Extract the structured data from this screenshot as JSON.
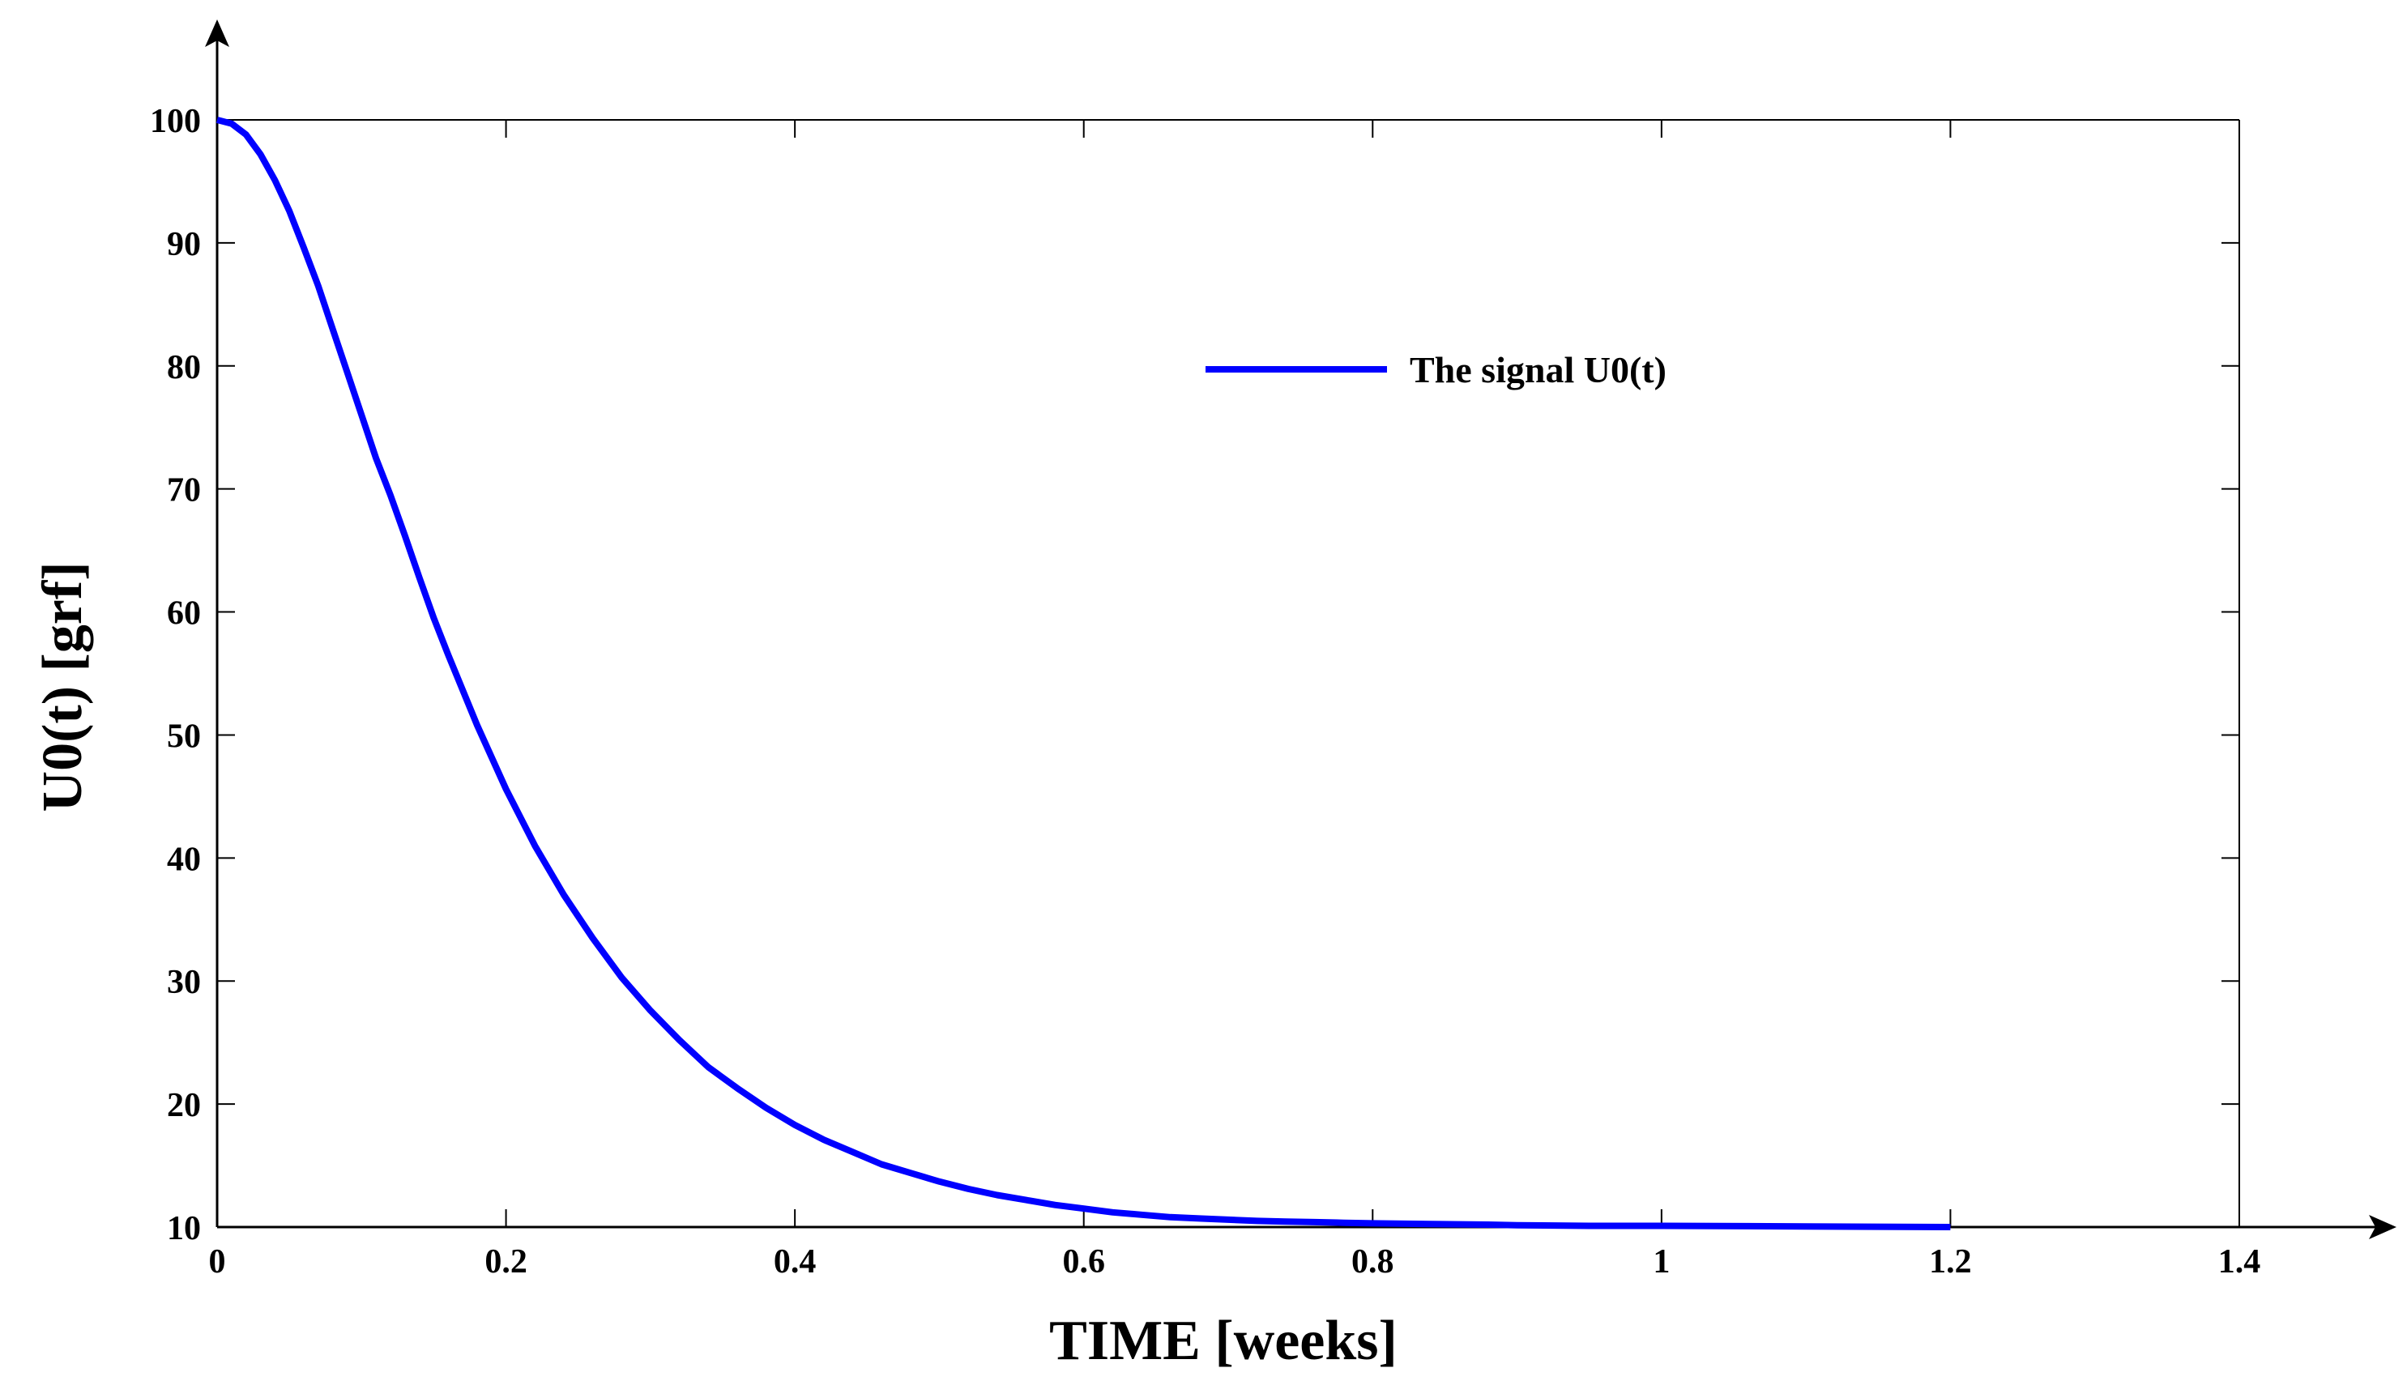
{
  "colors": {
    "series": "#0000ff",
    "axis": "#000000",
    "background": "#ffffff"
  },
  "chart_data": {
    "type": "line",
    "title": "",
    "xlabel": "TIME [weeks]",
    "ylabel": "U0(t) [grf]",
    "xlim": [
      0,
      1.4
    ],
    "ylim": [
      10,
      100
    ],
    "grid": false,
    "legend_position": "top-center",
    "x_ticks": [
      0,
      0.2,
      0.4,
      0.6,
      0.8,
      1,
      1.2,
      1.4
    ],
    "x_tick_labels": [
      "0",
      "0.2",
      "0.4",
      "0.6",
      "0.8",
      "1",
      "1.2",
      "1.4"
    ],
    "y_ticks": [
      10,
      20,
      30,
      40,
      50,
      60,
      70,
      80,
      90,
      100
    ],
    "y_tick_labels": [
      "10",
      "20",
      "30",
      "40",
      "50",
      "60",
      "70",
      "80",
      "90",
      "100"
    ],
    "series": [
      {
        "name": "The signal U0(t)",
        "x": [
          0,
          0.01,
          0.02,
          0.03,
          0.04,
          0.05,
          0.06,
          0.07,
          0.08,
          0.09,
          0.1,
          0.11,
          0.12,
          0.13,
          0.14,
          0.15,
          0.16,
          0.18,
          0.2,
          0.22,
          0.24,
          0.26,
          0.28,
          0.3,
          0.32,
          0.34,
          0.36,
          0.38,
          0.4,
          0.42,
          0.44,
          0.46,
          0.48,
          0.5,
          0.52,
          0.54,
          0.56,
          0.58,
          0.6,
          0.62,
          0.64,
          0.66,
          0.68,
          0.7,
          0.72,
          0.74,
          0.76,
          0.78,
          0.8,
          0.84,
          0.88,
          0.9,
          0.95,
          1.0,
          1.1,
          1.2
        ],
        "y": [
          100,
          99.7,
          98.8,
          97.2,
          95.1,
          92.6,
          89.6,
          86.5,
          83.0,
          79.5,
          76.0,
          72.5,
          69.5,
          66.2,
          62.8,
          59.5,
          56.5,
          50.8,
          45.6,
          41.0,
          37.0,
          33.5,
          30.3,
          27.6,
          25.2,
          23.0,
          21.3,
          19.7,
          18.3,
          17.1,
          16.1,
          15.1,
          14.4,
          13.7,
          13.1,
          12.6,
          12.2,
          11.8,
          11.5,
          11.2,
          11.0,
          10.8,
          10.7,
          10.6,
          10.5,
          10.45,
          10.4,
          10.35,
          10.3,
          10.25,
          10.2,
          10.15,
          10.1,
          10.1,
          10.05,
          10.0
        ]
      }
    ]
  }
}
